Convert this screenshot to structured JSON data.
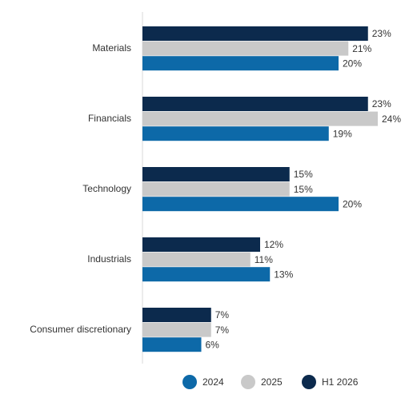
{
  "chart_data": {
    "type": "hbar",
    "categories": [
      "Materials",
      "Financials",
      "Technology",
      "Industrials",
      "Consumer discretionary"
    ],
    "series": [
      {
        "name": "2024",
        "color": "#0d69a8",
        "values": [
          20,
          19,
          20,
          13,
          6
        ],
        "value_labels": [
          "20%",
          "19%",
          "20%",
          "13%",
          "6%"
        ]
      },
      {
        "name": "2025",
        "color": "#c9c9c9",
        "values": [
          21,
          24,
          15,
          11,
          7
        ],
        "value_labels": [
          "21%",
          "24%",
          "15%",
          "11%",
          "7%"
        ]
      },
      {
        "name": "H1 2026",
        "color": "#0c2a4d",
        "values": [
          23,
          23,
          15,
          12,
          7
        ],
        "value_labels": [
          "23%",
          "23%",
          "15%",
          "12%",
          "7%"
        ]
      }
    ],
    "xlim": [
      0,
      24
    ]
  }
}
